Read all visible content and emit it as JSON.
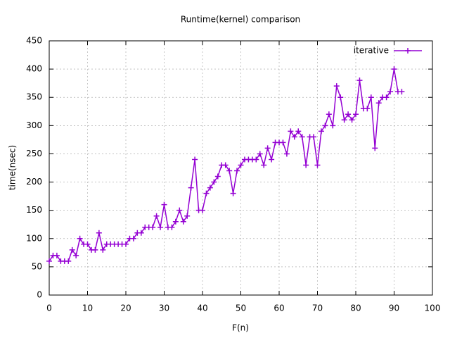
{
  "chart_data": {
    "type": "line",
    "title": "Runtime(kernel) comparison",
    "x_label": "F(n)",
    "y_label": "time(nsec)",
    "grid": true,
    "legend": "top-right",
    "xlim": [
      0,
      100
    ],
    "xticks": [
      0,
      10,
      20,
      30,
      40,
      50,
      60,
      70,
      80,
      90,
      100
    ],
    "ylim": [
      0,
      450
    ],
    "yticks": [
      0,
      50,
      100,
      150,
      200,
      250,
      300,
      350,
      400,
      450
    ],
    "x": [
      0,
      1,
      2,
      3,
      4,
      5,
      6,
      7,
      8,
      9,
      10,
      11,
      12,
      13,
      14,
      15,
      16,
      17,
      18,
      19,
      20,
      21,
      22,
      23,
      24,
      25,
      26,
      27,
      28,
      29,
      30,
      31,
      32,
      33,
      34,
      35,
      36,
      37,
      38,
      39,
      40,
      41,
      42,
      43,
      44,
      45,
      46,
      47,
      48,
      49,
      50,
      51,
      52,
      53,
      54,
      55,
      56,
      57,
      58,
      59,
      60,
      61,
      62,
      63,
      64,
      65,
      66,
      67,
      68,
      69,
      70,
      71,
      72,
      73,
      74,
      75,
      76,
      77,
      78,
      79,
      80,
      81,
      82,
      83,
      84,
      85,
      86,
      87,
      88,
      89,
      90,
      91,
      92
    ],
    "series": [
      {
        "name": "iterative",
        "color": "#9400d3",
        "values": [
          60,
          70,
          70,
          60,
          60,
          60,
          80,
          70,
          100,
          90,
          90,
          80,
          80,
          110,
          80,
          90,
          90,
          90,
          90,
          90,
          90,
          100,
          100,
          110,
          110,
          120,
          120,
          120,
          140,
          120,
          160,
          120,
          120,
          130,
          150,
          130,
          140,
          190,
          240,
          150,
          150,
          180,
          190,
          200,
          210,
          230,
          230,
          220,
          180,
          220,
          230,
          240,
          240,
          240,
          240,
          250,
          230,
          260,
          240,
          270,
          270,
          270,
          250,
          290,
          280,
          290,
          280,
          230,
          280,
          280,
          230,
          290,
          300,
          320,
          300,
          370,
          350,
          310,
          320,
          310,
          320,
          380,
          330,
          330,
          350,
          260,
          340,
          350,
          350,
          360,
          400,
          360,
          360
        ]
      }
    ]
  }
}
